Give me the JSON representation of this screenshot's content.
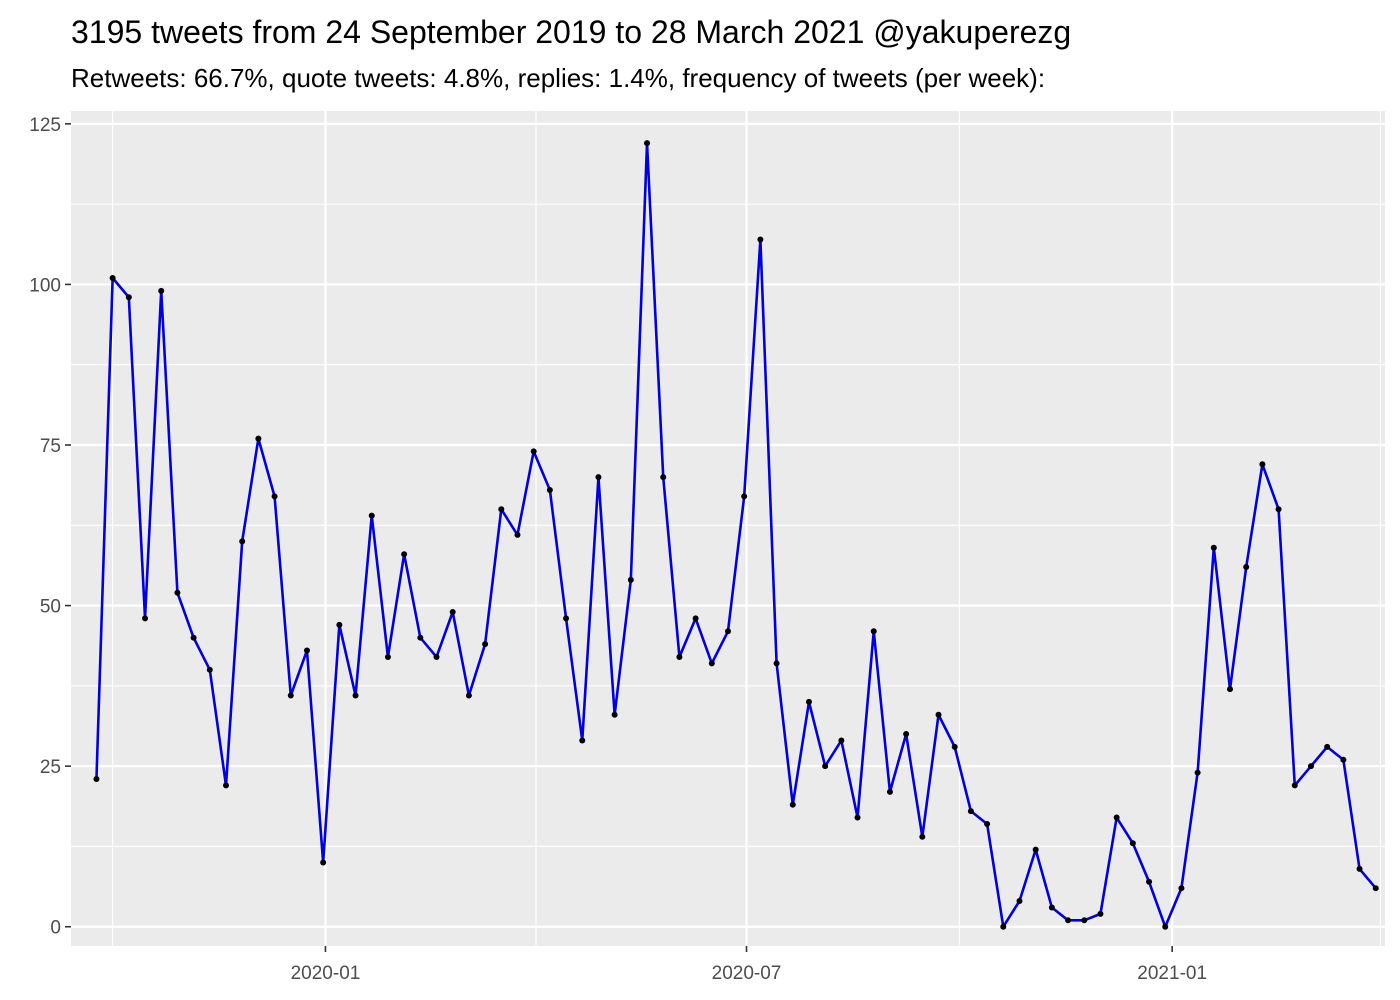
{
  "chart_data": {
    "type": "line",
    "title": "3195 tweets from 24 September 2019 to 28 March 2021 @yakuperezg",
    "subtitle": "Retweets: 66.7%, quote tweets: 4.8%, replies: 1.4%, frequency of tweets (per week):",
    "xlabel": "",
    "ylabel": "",
    "ylim": [
      -3,
      127
    ],
    "xlim": [
      "2019-09-13",
      "2021-04-03"
    ],
    "grid": true,
    "legend": "none",
    "colors": {
      "line": "#0000e0",
      "point": "#000000",
      "panel": "#ebebeb",
      "grid": "#ffffff"
    },
    "y_ticks": [
      0,
      25,
      50,
      75,
      100,
      125
    ],
    "y_minor_ticks": [
      12.5,
      37.5,
      62.5,
      87.5,
      112.5
    ],
    "x_ticks": [
      {
        "date": "2020-01-01",
        "label": "2020-01"
      },
      {
        "date": "2020-07-01",
        "label": "2020-07"
      },
      {
        "date": "2021-01-01",
        "label": "2021-01"
      }
    ],
    "x_minor_ticks": [
      "2019-10-01",
      "2020-04-01",
      "2020-10-01",
      "2021-04-01"
    ],
    "series": [
      {
        "dates": [
          "2019-09-24",
          "2019-10-01",
          "2019-10-08",
          "2019-10-15",
          "2019-10-22",
          "2019-10-29",
          "2019-11-05",
          "2019-11-12",
          "2019-11-19",
          "2019-11-26",
          "2019-12-03",
          "2019-12-10",
          "2019-12-17",
          "2019-12-24",
          "2019-12-31",
          "2020-01-07",
          "2020-01-14",
          "2020-01-21",
          "2020-01-28",
          "2020-02-04",
          "2020-02-11",
          "2020-02-18",
          "2020-02-25",
          "2020-03-03",
          "2020-03-10",
          "2020-03-17",
          "2020-03-24",
          "2020-03-31",
          "2020-04-07",
          "2020-04-14",
          "2020-04-21",
          "2020-04-28",
          "2020-05-05",
          "2020-05-12",
          "2020-05-19",
          "2020-05-26",
          "2020-06-02",
          "2020-06-09",
          "2020-06-16",
          "2020-06-23",
          "2020-06-30",
          "2020-07-07",
          "2020-07-14",
          "2020-07-21",
          "2020-07-28",
          "2020-08-04",
          "2020-08-11",
          "2020-08-18",
          "2020-08-25",
          "2020-09-01",
          "2020-09-08",
          "2020-09-15",
          "2020-09-22",
          "2020-09-29",
          "2020-10-06",
          "2020-10-13",
          "2020-10-20",
          "2020-10-27",
          "2020-11-03",
          "2020-11-10",
          "2020-11-17",
          "2020-11-24",
          "2020-12-01",
          "2020-12-08",
          "2020-12-15",
          "2020-12-22",
          "2020-12-29",
          "2021-01-05",
          "2021-01-12",
          "2021-01-19",
          "2021-01-26",
          "2021-02-02",
          "2021-02-09",
          "2021-02-16",
          "2021-02-23",
          "2021-03-02",
          "2021-03-09",
          "2021-03-16",
          "2021-03-23",
          "2021-03-30"
        ],
        "values": [
          23,
          101,
          98,
          48,
          99,
          52,
          45,
          40,
          22,
          60,
          76,
          67,
          36,
          43,
          10,
          47,
          36,
          64,
          42,
          58,
          45,
          42,
          49,
          36,
          44,
          65,
          61,
          74,
          68,
          48,
          29,
          70,
          33,
          54,
          122,
          70,
          42,
          48,
          41,
          46,
          67,
          107,
          41,
          19,
          35,
          25,
          29,
          17,
          46,
          21,
          30,
          14,
          33,
          28,
          18,
          16,
          0,
          4,
          12,
          3,
          1,
          1,
          2,
          17,
          13,
          7,
          0,
          6,
          24,
          59,
          37,
          56,
          72,
          65,
          22,
          25,
          28,
          26,
          9,
          6
        ]
      }
    ]
  }
}
